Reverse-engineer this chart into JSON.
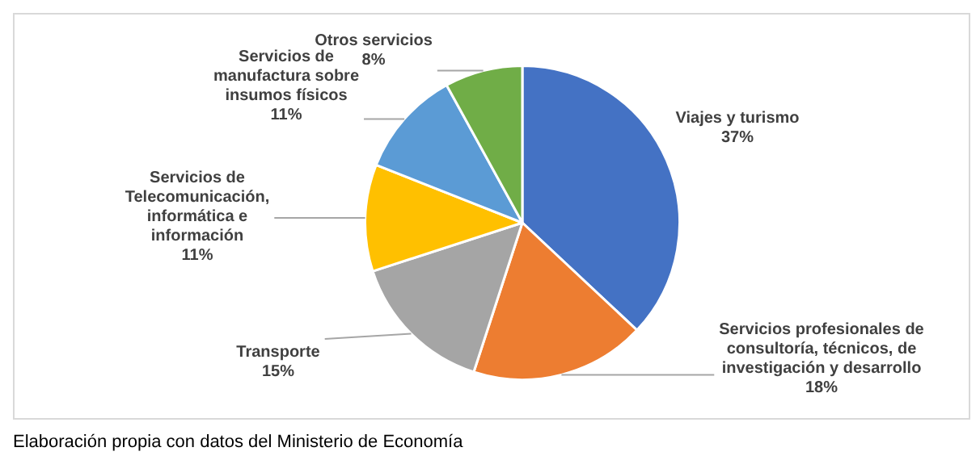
{
  "chart_data": {
    "type": "pie",
    "categories": [
      "Viajes y turismo",
      "Servicios profesionales de consultoría, técnicos, de investigación y desarrollo",
      "Transporte",
      "Servicios de Telecomunicación, informática e información",
      "Servicios de manufactura sobre insumos físicos",
      "Otros servicios"
    ],
    "values": [
      37,
      18,
      15,
      11,
      11,
      8
    ],
    "value_labels": [
      "37%",
      "18%",
      "15%",
      "11%",
      "11%",
      "8%"
    ],
    "colors": [
      "#4472c4",
      "#ed7d31",
      "#a5a5a5",
      "#ffc000",
      "#5b9bd5",
      "#70ad47"
    ],
    "legend": false,
    "annotations": [
      "Elaboración propia con datos del Ministerio de Economía"
    ]
  }
}
